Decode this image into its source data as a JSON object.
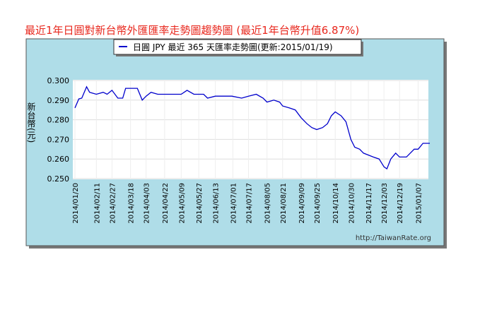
{
  "chart_data": {
    "type": "line",
    "title": "最近1年日圓對新台幣外匯匯率走勢圖趨勢圖 (最近1年台幣升值6.87%)",
    "legend_label": "日圓 JPY 最近 365 天匯率走勢圖(更新:2015/01/19)",
    "y_label": "新台幣(元)",
    "watermark": "http://TaiwanRate.org",
    "xlim": [
      "2014/01/20",
      "2015/01/19"
    ],
    "xticks": [
      "2014/01/20",
      "2014/02/11",
      "2014/02/27",
      "2014/03/18",
      "2014/04/03",
      "2014/04/22",
      "2014/05/09",
      "2014/05/27",
      "2014/06/13",
      "2014/07/01",
      "2014/07/17",
      "2014/08/05",
      "2014/08/21",
      "2014/09/09",
      "2014/09/25",
      "2014/10/14",
      "2014/10/30",
      "2014/11/17",
      "2014/12/03",
      "2014/12/19",
      "2015/01/07"
    ],
    "ylim": [
      0.25,
      0.3
    ],
    "yticks": [
      {
        "value": 0.25,
        "label": "0.250"
      },
      {
        "value": 0.26,
        "label": "0.260"
      },
      {
        "value": 0.27,
        "label": "0.270"
      },
      {
        "value": 0.28,
        "label": "0.280"
      },
      {
        "value": 0.29,
        "label": "0.290"
      },
      {
        "value": 0.3,
        "label": "0.300"
      }
    ],
    "grid": true,
    "x": [
      "2014/01/20",
      "2014/01/24",
      "2014/01/27",
      "2014/02/01",
      "2014/02/04",
      "2014/02/11",
      "2014/02/18",
      "2014/02/22",
      "2014/02/27",
      "2014/03/05",
      "2014/03/10",
      "2014/03/13",
      "2014/03/18",
      "2014/03/25",
      "2014/03/30",
      "2014/04/03",
      "2014/04/08",
      "2014/04/15",
      "2014/04/22",
      "2014/04/30",
      "2014/05/09",
      "2014/05/15",
      "2014/05/22",
      "2014/06/01",
      "2014/06/05",
      "2014/06/13",
      "2014/06/20",
      "2014/06/30",
      "2014/07/10",
      "2014/07/17",
      "2014/07/25",
      "2014/08/01",
      "2014/08/05",
      "2014/08/12",
      "2014/08/18",
      "2014/08/21",
      "2014/08/28",
      "2014/09/03",
      "2014/09/09",
      "2014/09/15",
      "2014/09/20",
      "2014/09/25",
      "2014/10/01",
      "2014/10/06",
      "2014/10/10",
      "2014/10/14",
      "2014/10/20",
      "2014/10/25",
      "2014/10/30",
      "2014/11/03",
      "2014/11/08",
      "2014/11/12",
      "2014/11/17",
      "2014/11/22",
      "2014/11/28",
      "2014/12/03",
      "2014/12/06",
      "2014/12/10",
      "2014/12/15",
      "2014/12/19",
      "2014/12/26",
      "2015/01/03",
      "2015/01/07",
      "2015/01/12",
      "2015/01/19"
    ],
    "series": [
      {
        "name": "日圓 JPY",
        "color": "#0000cc",
        "values": [
          0.286,
          0.2906,
          0.291,
          0.2968,
          0.294,
          0.293,
          0.294,
          0.293,
          0.295,
          0.291,
          0.291,
          0.296,
          0.296,
          0.296,
          0.29,
          0.292,
          0.294,
          0.293,
          0.293,
          0.293,
          0.293,
          0.295,
          0.293,
          0.293,
          0.291,
          0.292,
          0.292,
          0.292,
          0.291,
          0.292,
          0.293,
          0.291,
          0.289,
          0.29,
          0.289,
          0.287,
          0.286,
          0.285,
          0.281,
          0.278,
          0.276,
          0.275,
          0.276,
          0.278,
          0.282,
          0.284,
          0.282,
          0.279,
          0.27,
          0.266,
          0.265,
          0.263,
          0.262,
          0.261,
          0.26,
          0.256,
          0.255,
          0.26,
          0.263,
          0.261,
          0.261,
          0.265,
          0.265,
          0.268,
          0.268
        ]
      }
    ]
  }
}
